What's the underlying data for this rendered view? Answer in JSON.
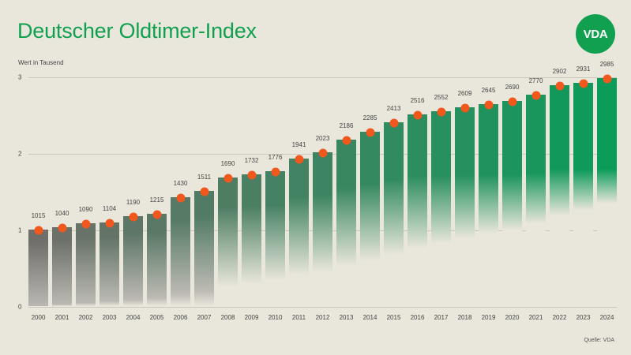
{
  "header": {
    "title": "Deutscher Oldtimer-Index",
    "logo_text": "VDA"
  },
  "colors": {
    "background": "#e9e6dc",
    "title": "#11a04f",
    "logo_bg": "#11a04f",
    "dot": "#f0581e",
    "bar_start_gray": "#6f6e69",
    "bar_end_green": "#0aa85e",
    "gridline": "#cbc7bb"
  },
  "footer": {
    "source": "Quelle: VDA"
  },
  "chart_data": {
    "type": "bar",
    "title": "Deutscher Oldtimer-Index",
    "subtitle": "",
    "xlabel": "",
    "ylabel": "Wert in Tausend",
    "ylim": [
      0,
      3
    ],
    "yticks": [
      0,
      1,
      2,
      3
    ],
    "ytick_labels": [
      "0",
      "1",
      "2",
      "3"
    ],
    "grid": true,
    "legend": null,
    "markers": "orange dot at top of each bar",
    "categories": [
      "2000",
      "2001",
      "2002",
      "2003",
      "2004",
      "2005",
      "2006",
      "2007",
      "2008",
      "2009",
      "2010",
      "2011",
      "2012",
      "2013",
      "2014",
      "2015",
      "2016",
      "2017",
      "2018",
      "2019",
      "2020",
      "2021",
      "2022",
      "2023",
      "2024"
    ],
    "values": [
      1015,
      1040,
      1090,
      1104,
      1190,
      1215,
      1430,
      1511,
      1690,
      1732,
      1776,
      1941,
      2023,
      2186,
      2285,
      2413,
      2516,
      2552,
      2609,
      2645,
      2690,
      2770,
      2902,
      2931,
      2985
    ],
    "data_labels": [
      "1015",
      "1040",
      "1090",
      "1104",
      "1190",
      "1215",
      "1430",
      "1511",
      "1690",
      "1732",
      "1776",
      "1941",
      "2023",
      "2186",
      "2285",
      "2413",
      "2516",
      "2552",
      "2609",
      "2645",
      "2690",
      "2770",
      "2902",
      "2931",
      "2985"
    ],
    "annotations": [
      "Quelle: VDA"
    ]
  }
}
